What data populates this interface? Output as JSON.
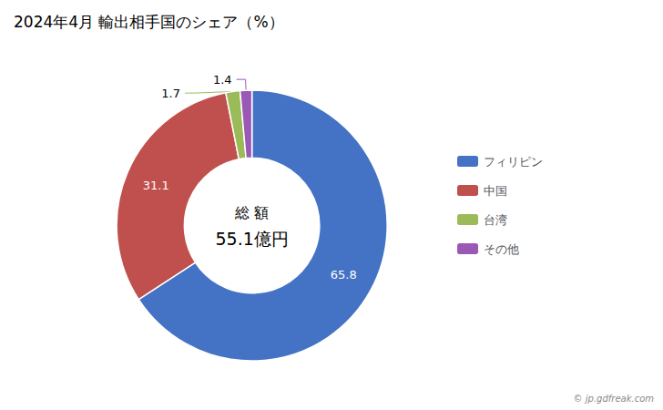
{
  "chart_data": {
    "type": "pie",
    "title": "2024年4月 輸出相手国のシェア（%）",
    "categories": [
      "フィリピン",
      "中国",
      "台湾",
      "その他"
    ],
    "values": [
      65.8,
      31.1,
      1.7,
      1.4
    ],
    "colors": [
      "#4472C4",
      "#C0504D",
      "#9BBB59",
      "#9B59B6"
    ],
    "data_labels": true,
    "legend": "right",
    "annotations": [
      "総 額",
      "55.1億円",
      "© jp.gdfreak.com"
    ]
  }
}
